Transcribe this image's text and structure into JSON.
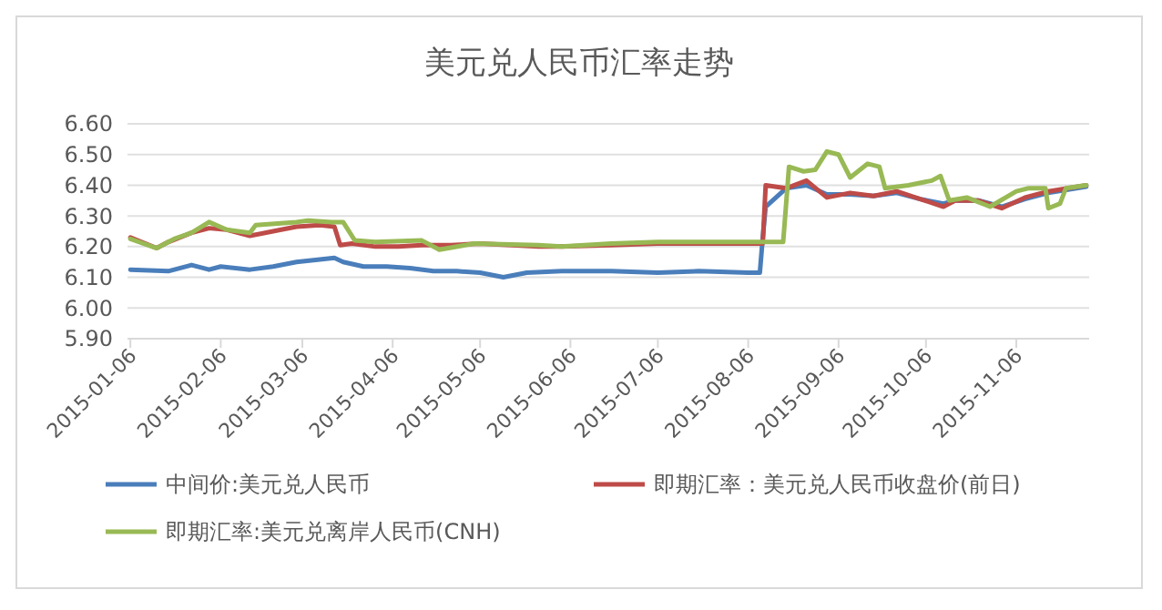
{
  "chart_data": {
    "type": "line",
    "title": "美元兑人民币汇率走势",
    "xlim": [
      "2015-01-05",
      "2015-12-01"
    ],
    "xticks": [
      "2015-01-06",
      "2015-02-06",
      "2015-03-06",
      "2015-04-06",
      "2015-05-06",
      "2015-06-06",
      "2015-07-06",
      "2015-08-06",
      "2015-09-06",
      "2015-10-06",
      "2015-11-06"
    ],
    "ylim": [
      5.9,
      6.6
    ],
    "yticks": [
      {
        "value": 5.9,
        "label": "5.90"
      },
      {
        "value": 6.0,
        "label": "6.00"
      },
      {
        "value": 6.1,
        "label": "6.10"
      },
      {
        "value": 6.2,
        "label": "6.20"
      },
      {
        "value": 6.3,
        "label": "6.30"
      },
      {
        "value": 6.4,
        "label": "6.40"
      },
      {
        "value": 6.5,
        "label": "6.50"
      },
      {
        "value": 6.6,
        "label": "6.60"
      }
    ],
    "grid": "y",
    "legend": "bottom",
    "marker": "none",
    "line_style": "solid",
    "series": [
      {
        "name": "中间价:美元兑人民币",
        "color": "#4a7ebb",
        "x": [
          "2015-01-06",
          "2015-01-19",
          "2015-01-27",
          "2015-02-02",
          "2015-02-06",
          "2015-02-16",
          "2015-02-24",
          "2015-03-04",
          "2015-03-12",
          "2015-03-17",
          "2015-03-20",
          "2015-03-27",
          "2015-04-04",
          "2015-04-12",
          "2015-04-20",
          "2015-04-28",
          "2015-05-06",
          "2015-05-14",
          "2015-05-22",
          "2015-06-03",
          "2015-06-20",
          "2015-07-06",
          "2015-07-20",
          "2015-08-06",
          "2015-08-10",
          "2015-08-11",
          "2015-08-12",
          "2015-08-19",
          "2015-08-26",
          "2015-09-02",
          "2015-09-10",
          "2015-09-18",
          "2015-09-26",
          "2015-10-04",
          "2015-10-12",
          "2015-10-16",
          "2015-10-24",
          "2015-11-01",
          "2015-11-09",
          "2015-11-17",
          "2015-11-30"
        ],
        "values": [
          6.125,
          6.12,
          6.14,
          6.125,
          6.135,
          6.125,
          6.135,
          6.15,
          6.158,
          6.163,
          6.15,
          6.135,
          6.135,
          6.13,
          6.12,
          6.12,
          6.115,
          6.1,
          6.115,
          6.12,
          6.12,
          6.115,
          6.12,
          6.115,
          6.115,
          6.23,
          6.33,
          6.39,
          6.4,
          6.37,
          6.37,
          6.365,
          6.375,
          6.355,
          6.34,
          6.35,
          6.35,
          6.33,
          6.355,
          6.375,
          6.395
        ]
      },
      {
        "name": "即期汇率：美元兑人民币收盘价(前日)",
        "color": "#be4b48",
        "x": [
          "2015-01-06",
          "2015-01-15",
          "2015-01-19",
          "2015-01-27",
          "2015-02-02",
          "2015-02-08",
          "2015-02-16",
          "2015-02-24",
          "2015-03-04",
          "2015-03-12",
          "2015-03-17",
          "2015-03-19",
          "2015-03-23",
          "2015-03-31",
          "2015-04-08",
          "2015-04-16",
          "2015-04-26",
          "2015-05-06",
          "2015-05-26",
          "2015-06-03",
          "2015-06-20",
          "2015-07-06",
          "2015-07-20",
          "2015-08-06",
          "2015-08-11",
          "2015-08-12",
          "2015-08-19",
          "2015-08-26",
          "2015-09-02",
          "2015-09-10",
          "2015-09-18",
          "2015-09-26",
          "2015-10-04",
          "2015-10-12",
          "2015-10-16",
          "2015-10-24",
          "2015-11-01",
          "2015-11-09",
          "2015-11-17",
          "2015-11-30"
        ],
        "values": [
          6.23,
          6.195,
          6.215,
          6.245,
          6.26,
          6.255,
          6.235,
          6.25,
          6.265,
          6.27,
          6.265,
          6.205,
          6.21,
          6.2,
          6.2,
          6.205,
          6.205,
          6.21,
          6.2,
          6.2,
          6.205,
          6.21,
          6.21,
          6.21,
          6.21,
          6.4,
          6.39,
          6.415,
          6.36,
          6.375,
          6.365,
          6.38,
          6.355,
          6.33,
          6.35,
          6.35,
          6.325,
          6.36,
          6.38,
          6.4
        ]
      },
      {
        "name": "即期汇率:美元兑离岸人民币(CNH)",
        "color": "#98b954",
        "x": [
          "2015-01-06",
          "2015-01-15",
          "2015-01-21",
          "2015-01-27",
          "2015-02-02",
          "2015-02-08",
          "2015-02-16",
          "2015-02-18",
          "2015-03-04",
          "2015-03-08",
          "2015-03-16",
          "2015-03-20",
          "2015-03-24",
          "2015-03-31",
          "2015-04-16",
          "2015-04-22",
          "2015-05-04",
          "2015-05-26",
          "2015-06-03",
          "2015-06-20",
          "2015-07-06",
          "2015-07-20",
          "2015-08-06",
          "2015-08-18",
          "2015-08-20",
          "2015-08-25",
          "2015-08-29",
          "2015-09-02",
          "2015-09-06",
          "2015-09-10",
          "2015-09-16",
          "2015-09-20",
          "2015-09-22",
          "2015-09-30",
          "2015-10-08",
          "2015-10-11",
          "2015-10-14",
          "2015-10-20",
          "2015-10-28",
          "2015-11-06",
          "2015-11-10",
          "2015-11-16",
          "2015-11-17",
          "2015-11-21",
          "2015-11-23",
          "2015-11-30"
        ],
        "values": [
          6.225,
          6.195,
          6.225,
          6.245,
          6.28,
          6.255,
          6.245,
          6.27,
          6.28,
          6.285,
          6.28,
          6.28,
          6.22,
          6.215,
          6.22,
          6.19,
          6.21,
          6.205,
          6.2,
          6.21,
          6.215,
          6.215,
          6.215,
          6.215,
          6.46,
          6.445,
          6.45,
          6.51,
          6.5,
          6.425,
          6.47,
          6.46,
          6.39,
          6.4,
          6.415,
          6.43,
          6.35,
          6.36,
          6.33,
          6.38,
          6.39,
          6.39,
          6.325,
          6.34,
          6.39,
          6.4
        ]
      }
    ]
  }
}
